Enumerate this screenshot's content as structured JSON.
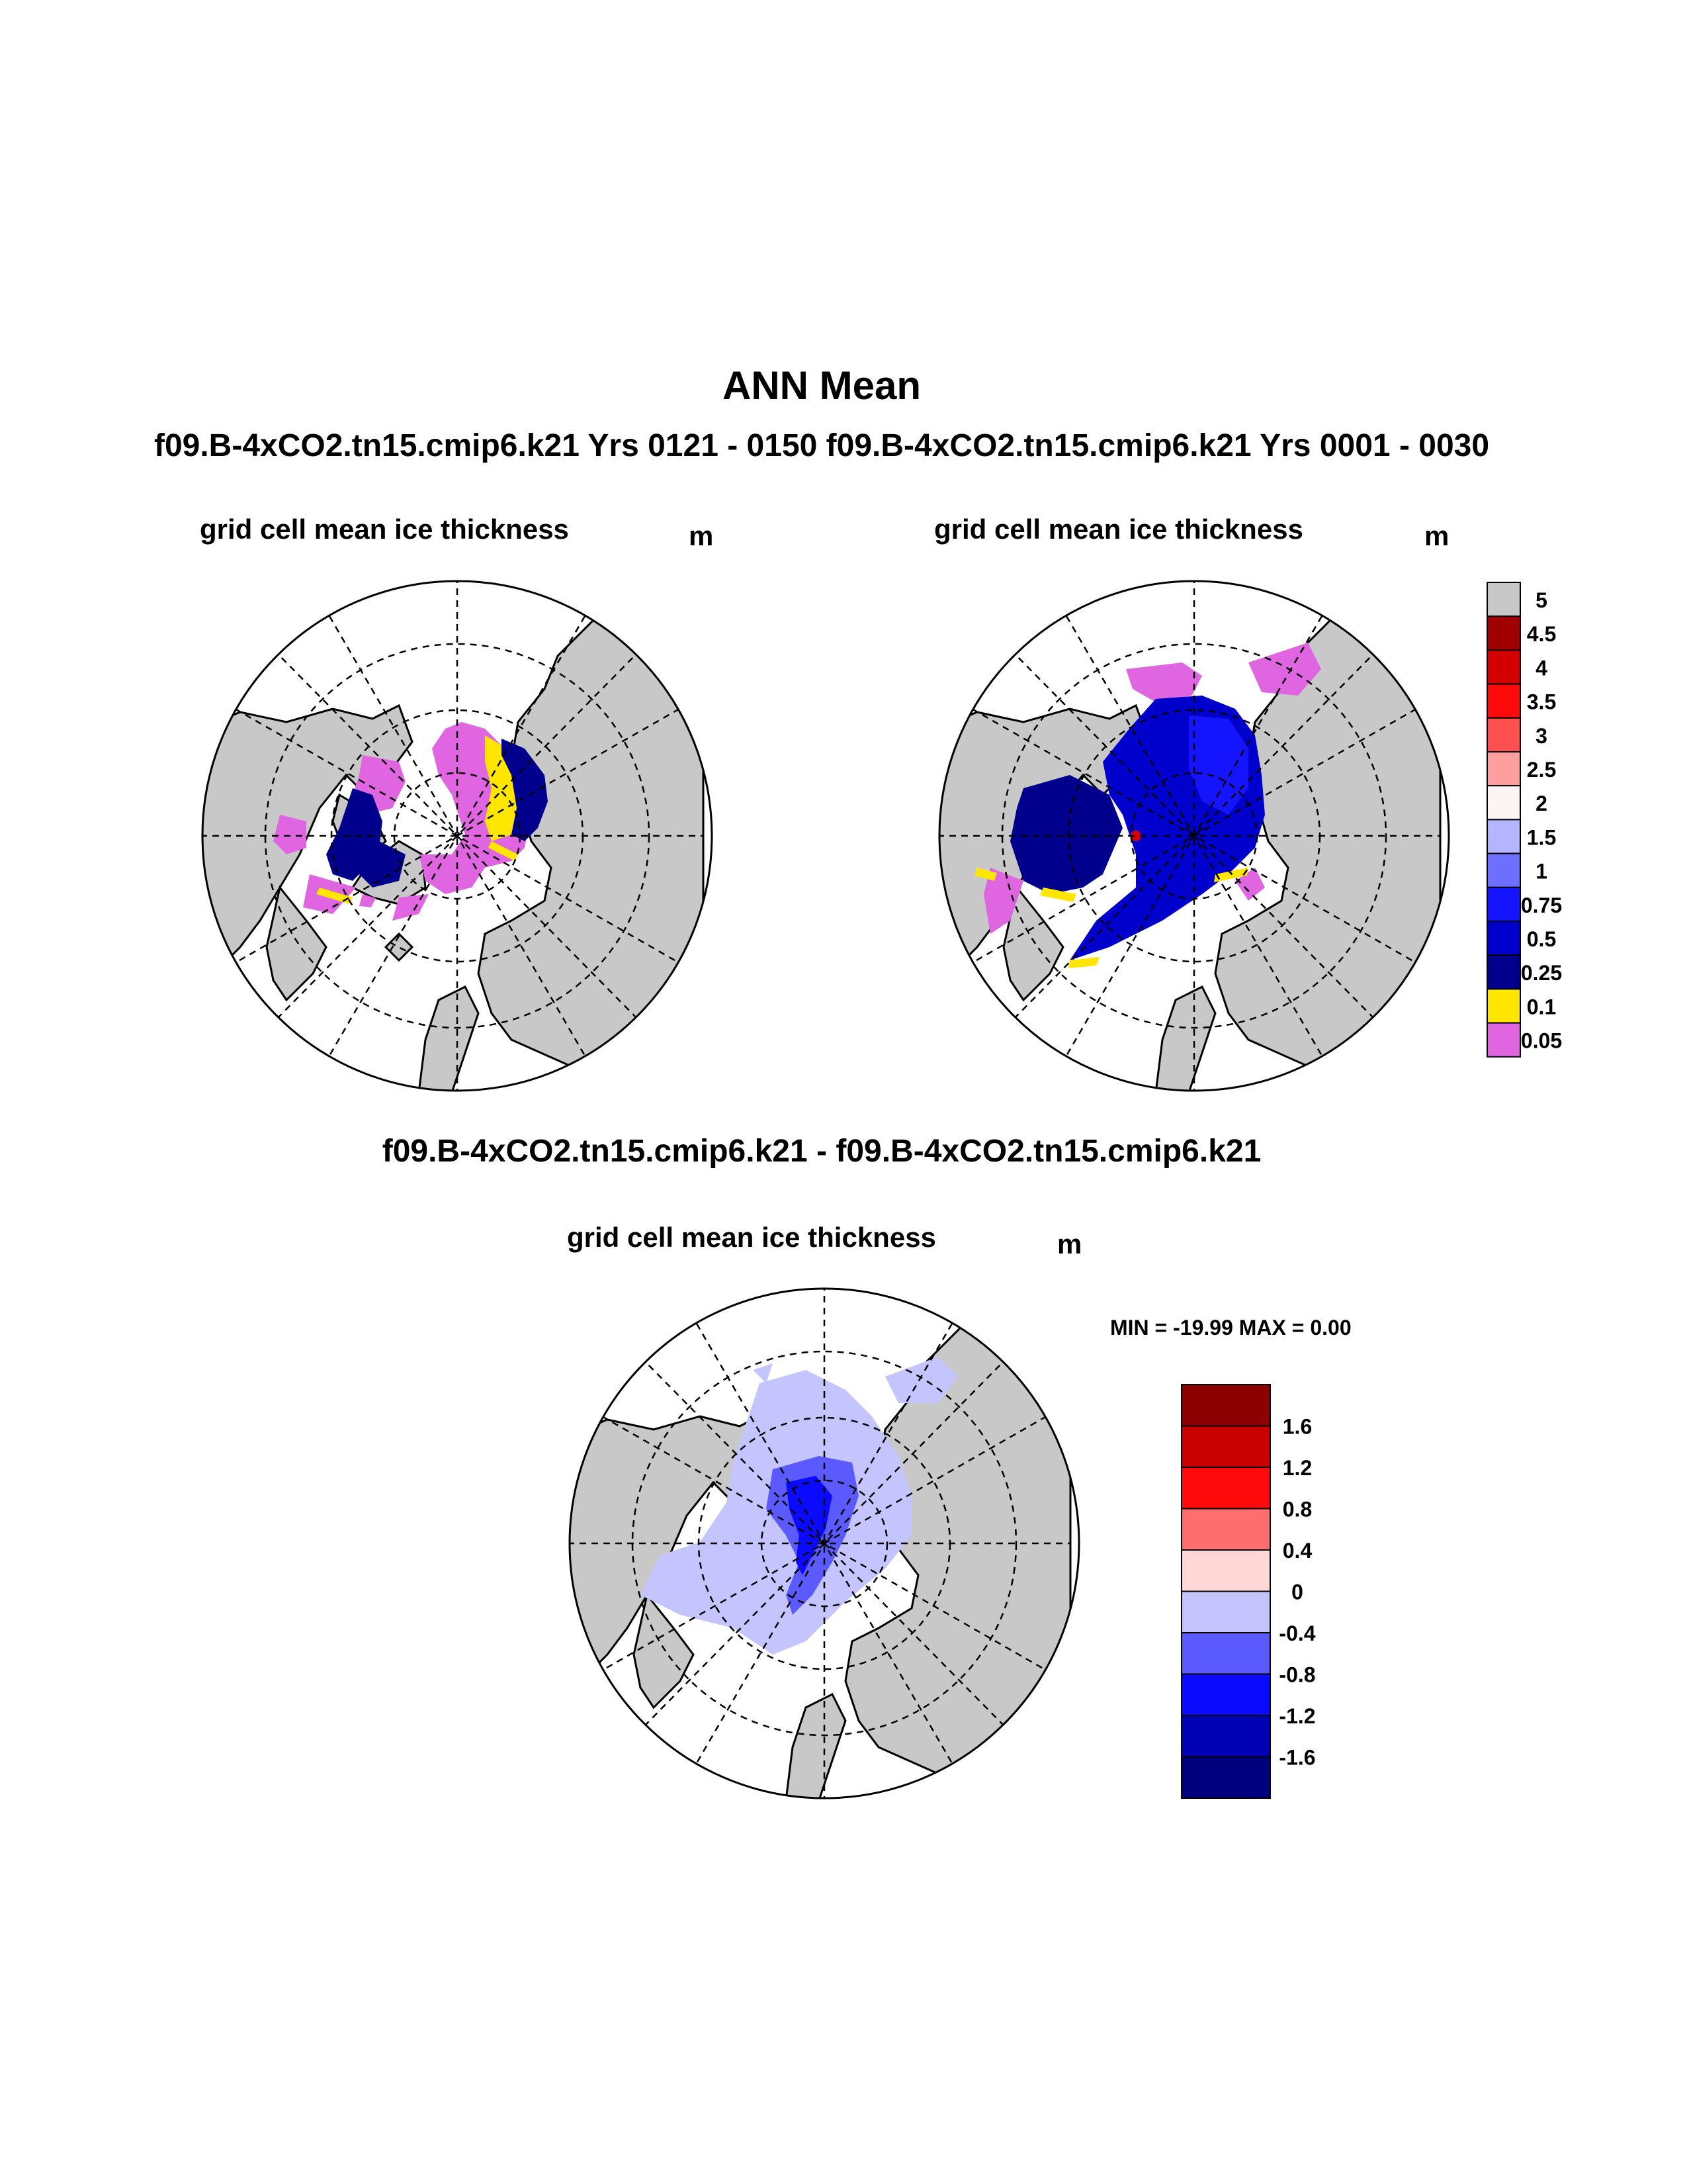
{
  "title": "ANN Mean",
  "subtitle": "f09.B-4xCO2.tn15.cmip6.k21  Yrs 0121 - 0150 f09.B-4xCO2.tn15.cmip6.k21  Yrs 0001 - 0030",
  "panels": [
    {
      "label": "grid cell mean ice thickness",
      "unit": "m"
    },
    {
      "label": "grid cell mean ice thickness",
      "unit": "m"
    }
  ],
  "diff": {
    "title": "f09.B-4xCO2.tn15.cmip6.k21 - f09.B-4xCO2.tn15.cmip6.k21",
    "label": "grid cell mean ice thickness",
    "unit": "m",
    "minmax": "MIN = -19.99 MAX =   0.00"
  },
  "colors": {
    "land": "#c8c8c8",
    "ocean": "#ffffff"
  },
  "legend_main": {
    "labels": [
      "5",
      "4.5",
      "4",
      "3.5",
      "3",
      "2.5",
      "2",
      "1.5",
      "1",
      "0.75",
      "0.5",
      "0.25",
      "0.1",
      "0.05"
    ],
    "colors": [
      "#c8c8c8",
      "#a00000",
      "#d40000",
      "#ff0a0a",
      "#ff5050",
      "#ff9e9e",
      "#fff4f4",
      "#b4b4ff",
      "#6e6eff",
      "#1414ff",
      "#0000cd",
      "#00008c",
      "#ffe600",
      "#e065e0"
    ]
  },
  "legend_diff": {
    "labels": [
      "1.6",
      "1.2",
      "0.8",
      "0.4",
      "0",
      "-0.4",
      "-0.8",
      "-1.2",
      "-1.6"
    ],
    "colors": [
      "#8c0000",
      "#c80000",
      "#ff0a0a",
      "#ff6e6e",
      "#ffd7d7",
      "#c4c4ff",
      "#5a5aff",
      "#0a0aff",
      "#0000b4",
      "#00007e"
    ]
  }
}
